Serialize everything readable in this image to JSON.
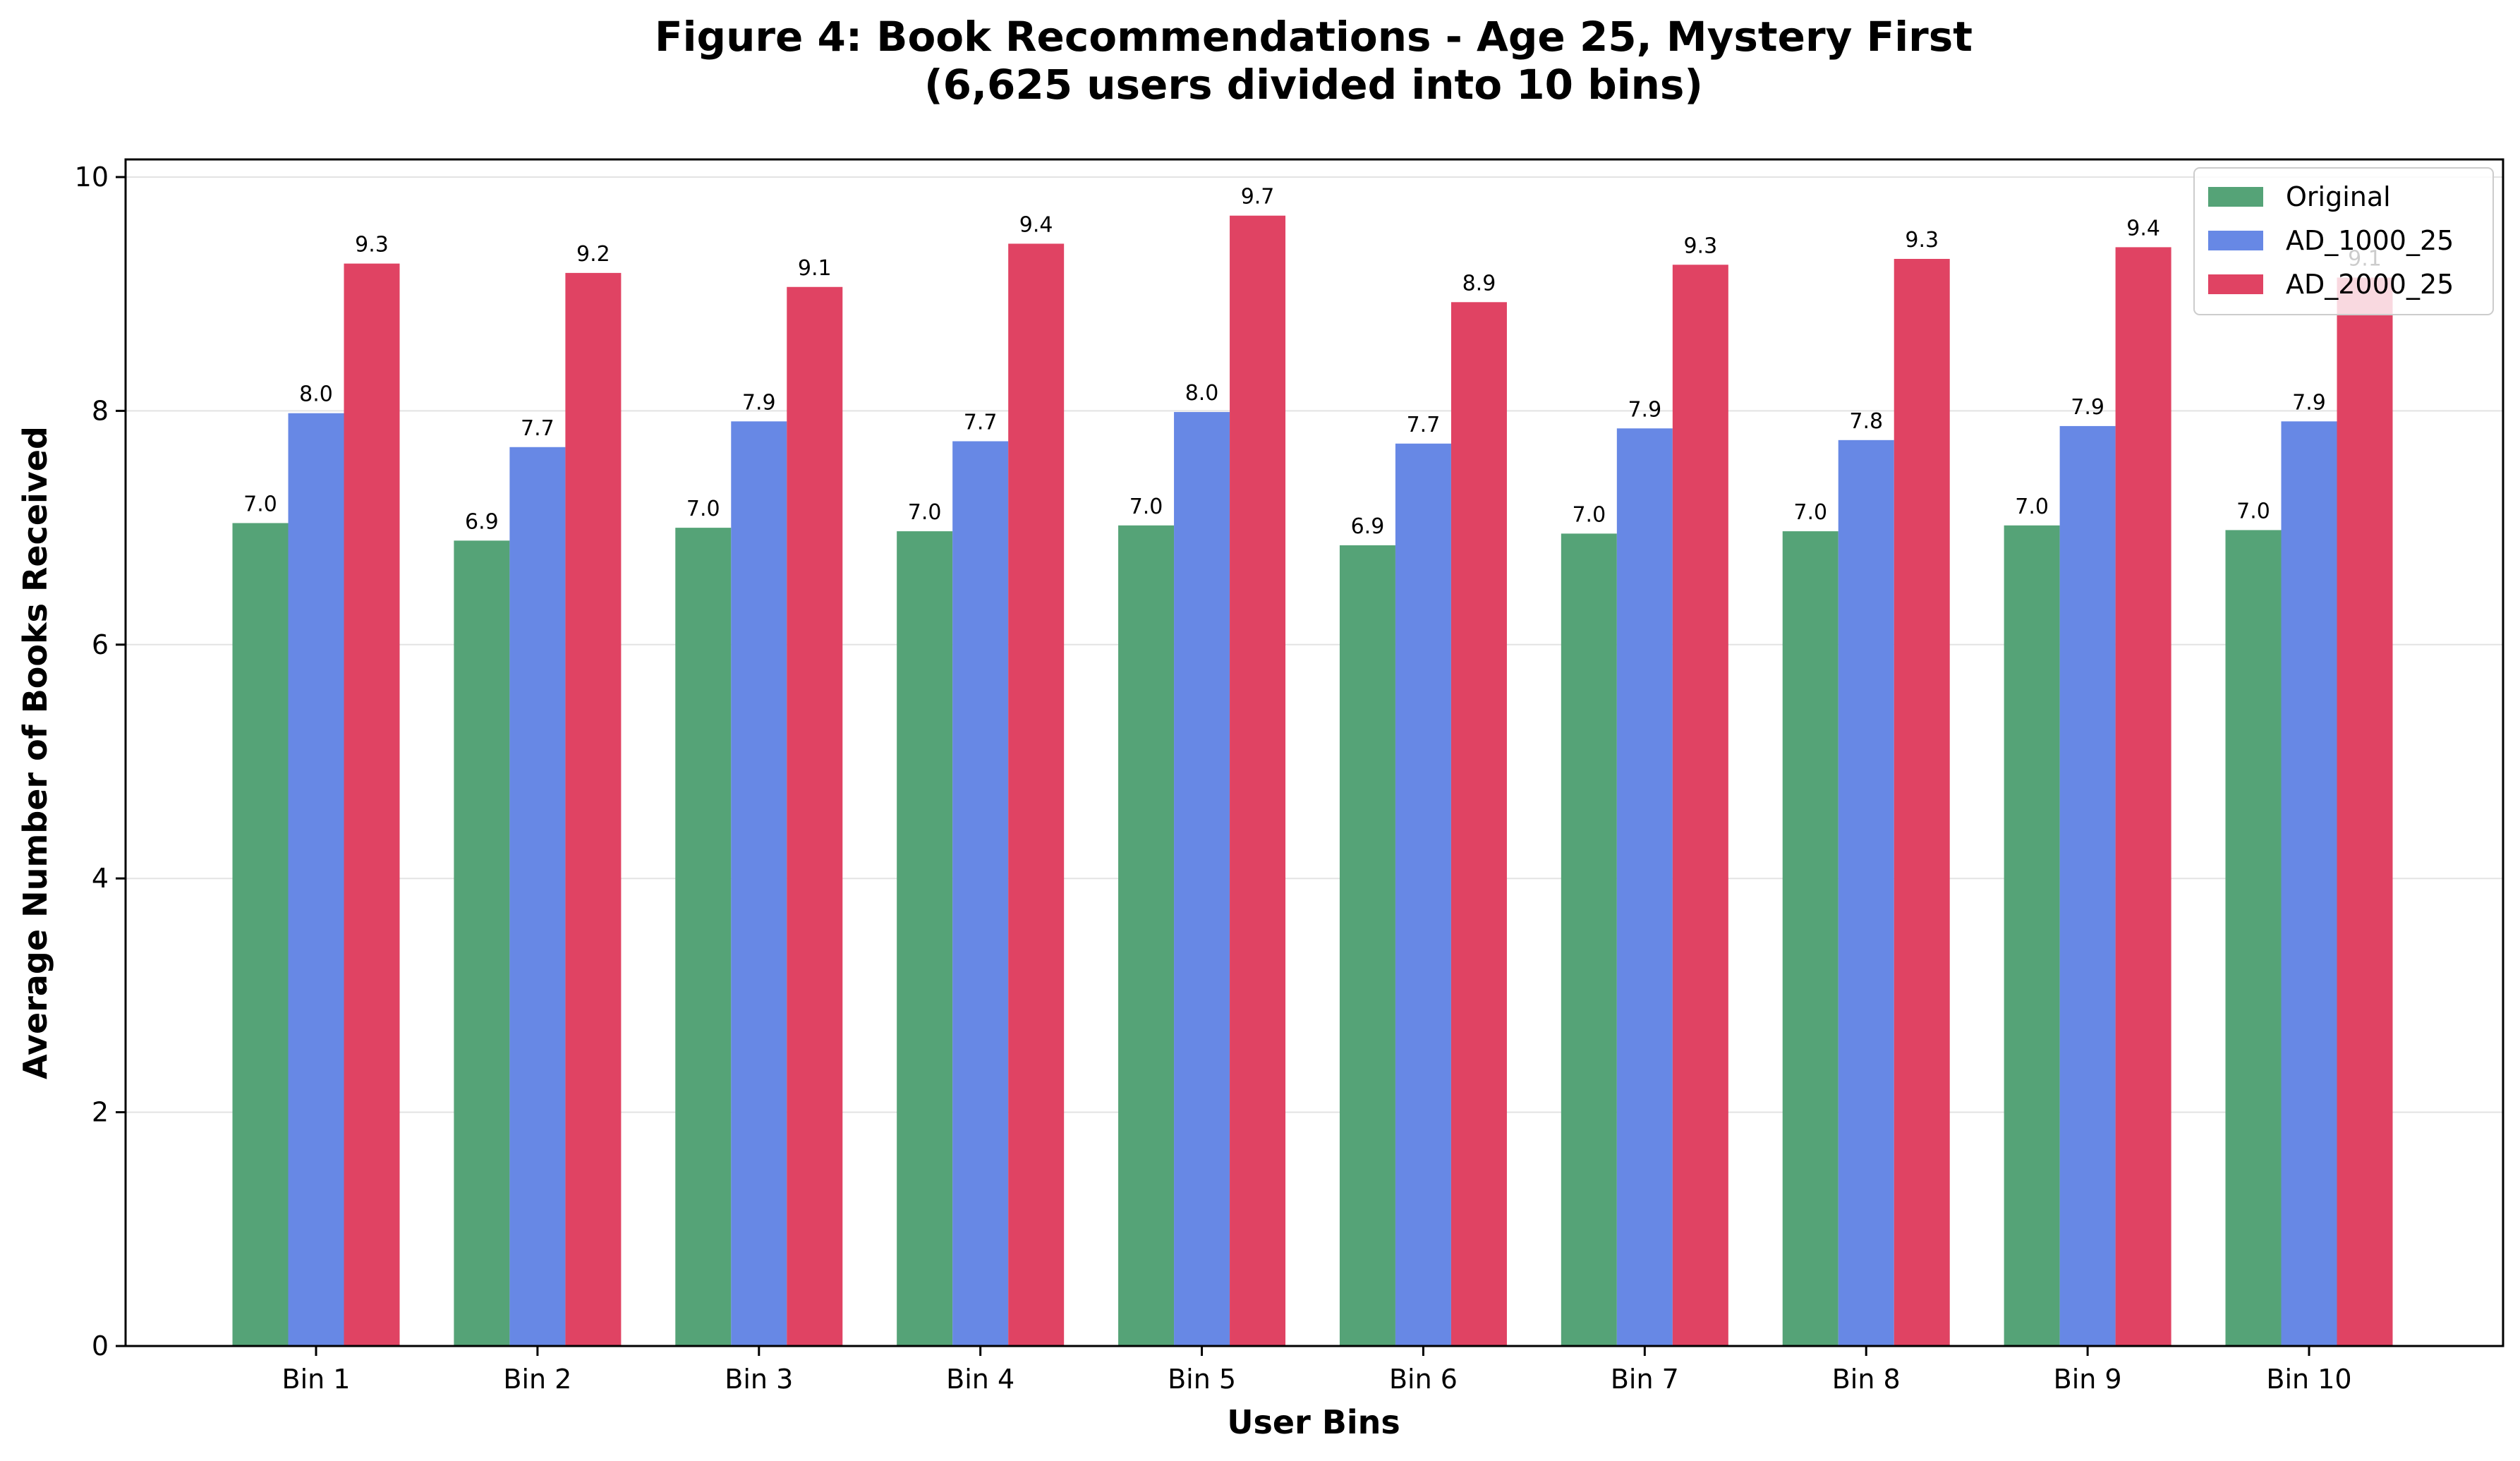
{
  "chart_data": {
    "type": "bar",
    "title": "Figure 4: Book Recommendations - Age 25, Mystery First",
    "subtitle": "(6,625 users divided into 10 bins)",
    "xlabel": "User Bins",
    "ylabel": "Average Number of Books Received",
    "categories": [
      "Bin 1",
      "Bin 2",
      "Bin 3",
      "Bin 4",
      "Bin 5",
      "Bin 6",
      "Bin 7",
      "Bin 8",
      "Bin 9",
      "Bin 10"
    ],
    "ylim": [
      0,
      10
    ],
    "yticks": [
      0,
      2,
      4,
      6,
      8,
      10
    ],
    "grid": "horizontal",
    "legend_position": "top-right",
    "series": [
      {
        "name": "Original",
        "color": "#55a377",
        "values": [
          7.04,
          6.89,
          7.0,
          6.97,
          7.02,
          6.85,
          6.95,
          6.97,
          7.02,
          6.98
        ],
        "labels": [
          "7.0",
          "6.9",
          "7.0",
          "7.0",
          "7.0",
          "6.9",
          "7.0",
          "7.0",
          "7.0",
          "7.0"
        ]
      },
      {
        "name": "AD_1000_25",
        "color": "#6788e5",
        "values": [
          7.98,
          7.69,
          7.91,
          7.74,
          7.99,
          7.72,
          7.85,
          7.75,
          7.87,
          7.91
        ],
        "labels": [
          "8.0",
          "7.7",
          "7.9",
          "7.7",
          "8.0",
          "7.7",
          "7.9",
          "7.8",
          "7.9",
          "7.9"
        ]
      },
      {
        "name": "AD_2000_25",
        "color": "#e04363",
        "values": [
          9.26,
          9.18,
          9.06,
          9.43,
          9.67,
          8.93,
          9.25,
          9.3,
          9.4,
          9.14
        ],
        "labels": [
          "9.3",
          "9.2",
          "9.1",
          "9.4",
          "9.7",
          "8.9",
          "9.3",
          "9.3",
          "9.4",
          "9.1"
        ]
      }
    ]
  }
}
